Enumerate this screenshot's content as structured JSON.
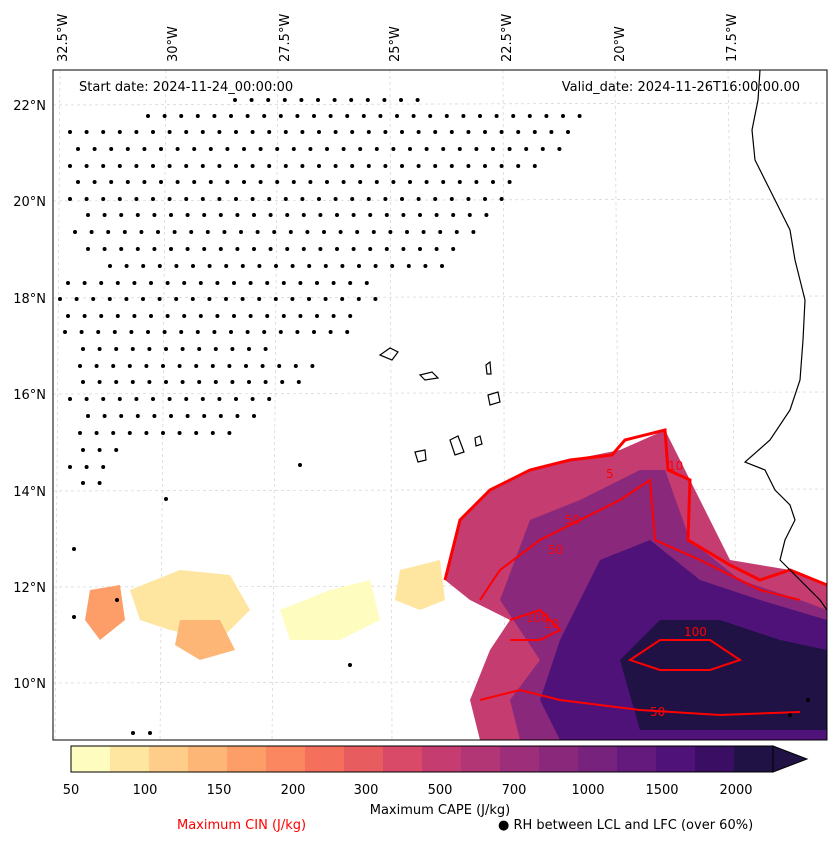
{
  "map": {
    "start_date": "Start date: 2024-11-24_00:00:00",
    "valid_date": "Valid_date: 2024-11-26T16:00:00.00",
    "lon_labels": [
      "32.5°W",
      "30°W",
      "27.5°W",
      "25°W",
      "22.5°W",
      "20°W",
      "17.5°W"
    ],
    "lat_labels": [
      "22°N",
      "20°N",
      "18°N",
      "16°N",
      "14°N",
      "12°N",
      "10°N"
    ],
    "cin_contour_labels": [
      "5",
      "10",
      "50",
      "50",
      "100",
      "10",
      "100",
      "50"
    ]
  },
  "colorbar": {
    "title": "Maximum CAPE (J/kg)",
    "ticks": [
      "50",
      "100",
      "150",
      "200",
      "300",
      "500",
      "700",
      "1000",
      "1500",
      "2000"
    ],
    "colors": [
      "#fefcbe",
      "#fee5a0",
      "#fecd8a",
      "#feb677",
      "#fd9e69",
      "#fb8761",
      "#f5705c",
      "#e75d5f",
      "#d84a68",
      "#c43c70",
      "#b23575",
      "#9d2f7a",
      "#8a297b",
      "#77227c",
      "#641a7d",
      "#4f1279",
      "#3a0e63",
      "#201245"
    ]
  },
  "legend": {
    "cin_label": "Maximum CIN (J/kg)",
    "cin_color": "#ff0000",
    "rh_label": "● RH between LCL and LFC (over 60%)"
  }
}
